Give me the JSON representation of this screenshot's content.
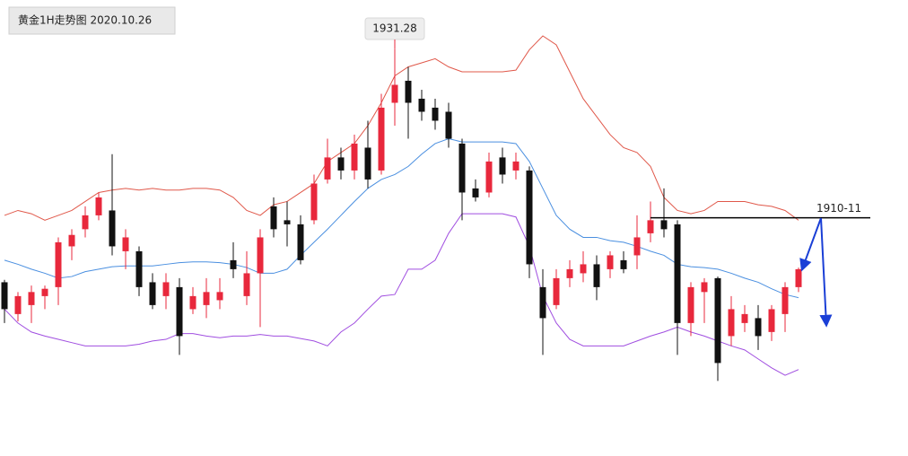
{
  "chart_data": {
    "type": "candlestick",
    "title": "黄金1H走势图 2020.10.26",
    "categories": [
      null,
      null,
      null,
      null,
      null,
      null,
      null,
      null,
      null,
      null,
      null,
      null,
      null,
      null,
      null,
      null,
      null,
      null,
      null,
      null,
      null,
      null,
      null,
      null,
      null,
      null,
      null,
      null,
      null,
      null,
      null,
      null,
      null,
      null,
      null,
      null,
      null,
      null,
      null,
      null,
      null,
      null,
      null,
      null,
      null,
      null,
      null,
      null,
      null,
      null,
      null,
      null,
      null,
      null,
      null,
      null,
      null,
      null,
      null,
      null
    ],
    "open": [
      1902.7,
      1898.8,
      1899.9,
      1901.0,
      1902.1,
      1907.1,
      1909.2,
      1910.9,
      1911.5,
      1906.5,
      1906.5,
      1902.7,
      1901.0,
      1902.1,
      1899.4,
      1899.9,
      1900.5,
      1905.4,
      1901.0,
      1903.8,
      1912.0,
      1910.3,
      1909.8,
      1910.3,
      1915.3,
      1918.0,
      1916.4,
      1919.2,
      1916.4,
      1924.7,
      1927.4,
      1925.2,
      1924.1,
      1923.6,
      1919.7,
      1914.2,
      1913.7,
      1918.0,
      1916.4,
      1916.4,
      1902.1,
      1899.9,
      1903.2,
      1903.8,
      1904.9,
      1904.3,
      1905.4,
      1906.0,
      1908.7,
      1910.3,
      1909.8,
      1897.7,
      1901.5,
      1903.2,
      1896.1,
      1897.7,
      1898.3,
      1896.6,
      1898.8,
      1902.1
    ],
    "high": [
      1903.0,
      1901.5,
      1902.3,
      1902.3,
      1908.2,
      1909.2,
      1912.0,
      1913.7,
      1918.4,
      1909.2,
      1907.1,
      1903.8,
      1903.8,
      1903.2,
      1902.1,
      1903.2,
      1903.2,
      1907.6,
      1906.5,
      1909.2,
      1913.1,
      1912.6,
      1910.9,
      1915.9,
      1920.3,
      1919.2,
      1920.8,
      1922.5,
      1925.8,
      1931.28,
      1929.1,
      1926.3,
      1925.2,
      1924.7,
      1920.3,
      1915.3,
      1918.6,
      1919.2,
      1918.6,
      1916.9,
      1904.3,
      1904.3,
      1905.4,
      1906.5,
      1906.0,
      1906.5,
      1906.5,
      1910.9,
      1912.6,
      1914.2,
      1910.3,
      1902.7,
      1903.2,
      1903.4,
      1901.0,
      1899.9,
      1899.9,
      1899.9,
      1902.7,
      1904.5
    ],
    "low": [
      1897.7,
      1897.9,
      1897.7,
      1899.4,
      1899.9,
      1905.4,
      1908.2,
      1910.3,
      1906.0,
      1904.3,
      1901.0,
      1899.4,
      1899.4,
      1893.8,
      1898.8,
      1898.3,
      1899.4,
      1903.2,
      1899.9,
      1897.2,
      1908.2,
      1907.1,
      1904.9,
      1909.8,
      1914.8,
      1915.3,
      1915.3,
      1914.2,
      1915.9,
      1921.9,
      1920.3,
      1922.5,
      1921.4,
      1919.2,
      1910.3,
      1912.6,
      1913.1,
      1914.8,
      1915.3,
      1903.2,
      1893.8,
      1899.4,
      1902.1,
      1902.7,
      1900.5,
      1903.2,
      1903.8,
      1904.3,
      1907.6,
      1908.2,
      1893.8,
      1896.1,
      1897.7,
      1890.6,
      1894.9,
      1896.6,
      1894.4,
      1895.5,
      1896.6,
      1901.5
    ],
    "close": [
      1899.4,
      1901.0,
      1901.5,
      1901.9,
      1907.6,
      1908.5,
      1910.9,
      1913.1,
      1907.1,
      1908.2,
      1902.1,
      1899.9,
      1902.7,
      1896.1,
      1901.0,
      1901.5,
      1901.5,
      1904.3,
      1903.8,
      1908.2,
      1909.2,
      1909.8,
      1905.4,
      1914.8,
      1918.0,
      1916.4,
      1919.7,
      1915.3,
      1924.1,
      1926.9,
      1924.7,
      1923.6,
      1922.5,
      1920.3,
      1913.7,
      1913.1,
      1917.5,
      1915.9,
      1917.5,
      1904.9,
      1898.3,
      1903.2,
      1904.3,
      1904.9,
      1902.1,
      1906.0,
      1904.3,
      1908.2,
      1910.3,
      1909.2,
      1897.7,
      1902.1,
      1902.7,
      1892.8,
      1899.4,
      1898.8,
      1896.1,
      1899.4,
      1902.1,
      1904.3
    ],
    "up_color": "#e8283c",
    "down_color": "#111111",
    "bands": [
      {
        "color": "#e0584a",
        "values": [
          1910.9,
          1911.5,
          1911.1,
          1910.3,
          1910.9,
          1911.5,
          1912.6,
          1913.7,
          1914.0,
          1914.2,
          1914.0,
          1914.2,
          1914.0,
          1914.0,
          1914.2,
          1914.2,
          1914.0,
          1913.1,
          1911.5,
          1910.9,
          1912.2,
          1912.6,
          1913.7,
          1914.8,
          1917.5,
          1918.6,
          1919.7,
          1921.9,
          1924.7,
          1928.0,
          1929.1,
          1929.6,
          1930.1,
          1929.1,
          1928.5,
          1928.5,
          1928.5,
          1928.5,
          1928.7,
          1931.2,
          1932.9,
          1931.8,
          1928.5,
          1925.2,
          1923.0,
          1920.8,
          1919.2,
          1918.6,
          1916.9,
          1913.1,
          1911.5,
          1911.1,
          1911.5,
          1912.6,
          1912.6,
          1912.6,
          1912.2,
          1912.0,
          1911.5,
          1910.3
        ]
      },
      {
        "color": "#4a8fe0",
        "values": [
          1905.4,
          1904.9,
          1904.3,
          1903.8,
          1903.2,
          1903.4,
          1904.0,
          1904.3,
          1904.6,
          1904.7,
          1904.7,
          1904.7,
          1904.9,
          1905.1,
          1905.2,
          1905.2,
          1905.1,
          1904.9,
          1904.5,
          1903.8,
          1903.8,
          1904.3,
          1906.0,
          1907.6,
          1909.2,
          1910.9,
          1912.6,
          1914.2,
          1915.3,
          1915.9,
          1916.9,
          1918.4,
          1919.7,
          1920.3,
          1919.9,
          1919.9,
          1919.9,
          1919.9,
          1919.7,
          1917.5,
          1914.2,
          1910.9,
          1909.2,
          1908.2,
          1908.2,
          1907.8,
          1907.6,
          1907.1,
          1906.5,
          1906.0,
          1904.9,
          1904.6,
          1904.5,
          1904.3,
          1903.8,
          1903.2,
          1902.7,
          1901.9,
          1901.2,
          1900.8
        ]
      },
      {
        "color": "#a04ee0",
        "values": [
          1899.4,
          1897.7,
          1896.6,
          1896.1,
          1895.7,
          1895.3,
          1894.9,
          1894.9,
          1894.9,
          1894.9,
          1895.1,
          1895.5,
          1895.7,
          1896.4,
          1896.4,
          1896.1,
          1895.9,
          1896.1,
          1896.1,
          1896.3,
          1896.1,
          1896.1,
          1895.8,
          1895.5,
          1894.9,
          1896.6,
          1897.7,
          1899.4,
          1901.0,
          1901.2,
          1904.3,
          1904.3,
          1905.4,
          1908.7,
          1911.1,
          1911.1,
          1911.1,
          1911.1,
          1910.7,
          1907.1,
          1901.0,
          1897.7,
          1895.7,
          1894.9,
          1894.9,
          1894.9,
          1894.9,
          1895.5,
          1896.1,
          1896.6,
          1897.2,
          1896.6,
          1896.1,
          1895.5,
          1894.9,
          1894.4,
          1893.3,
          1892.2,
          1891.3,
          1892.0
        ]
      }
    ],
    "level": {
      "label": "1910-11",
      "value": 1910.6
    },
    "ylim": [
      1881.4,
      1937.3
    ]
  }
}
